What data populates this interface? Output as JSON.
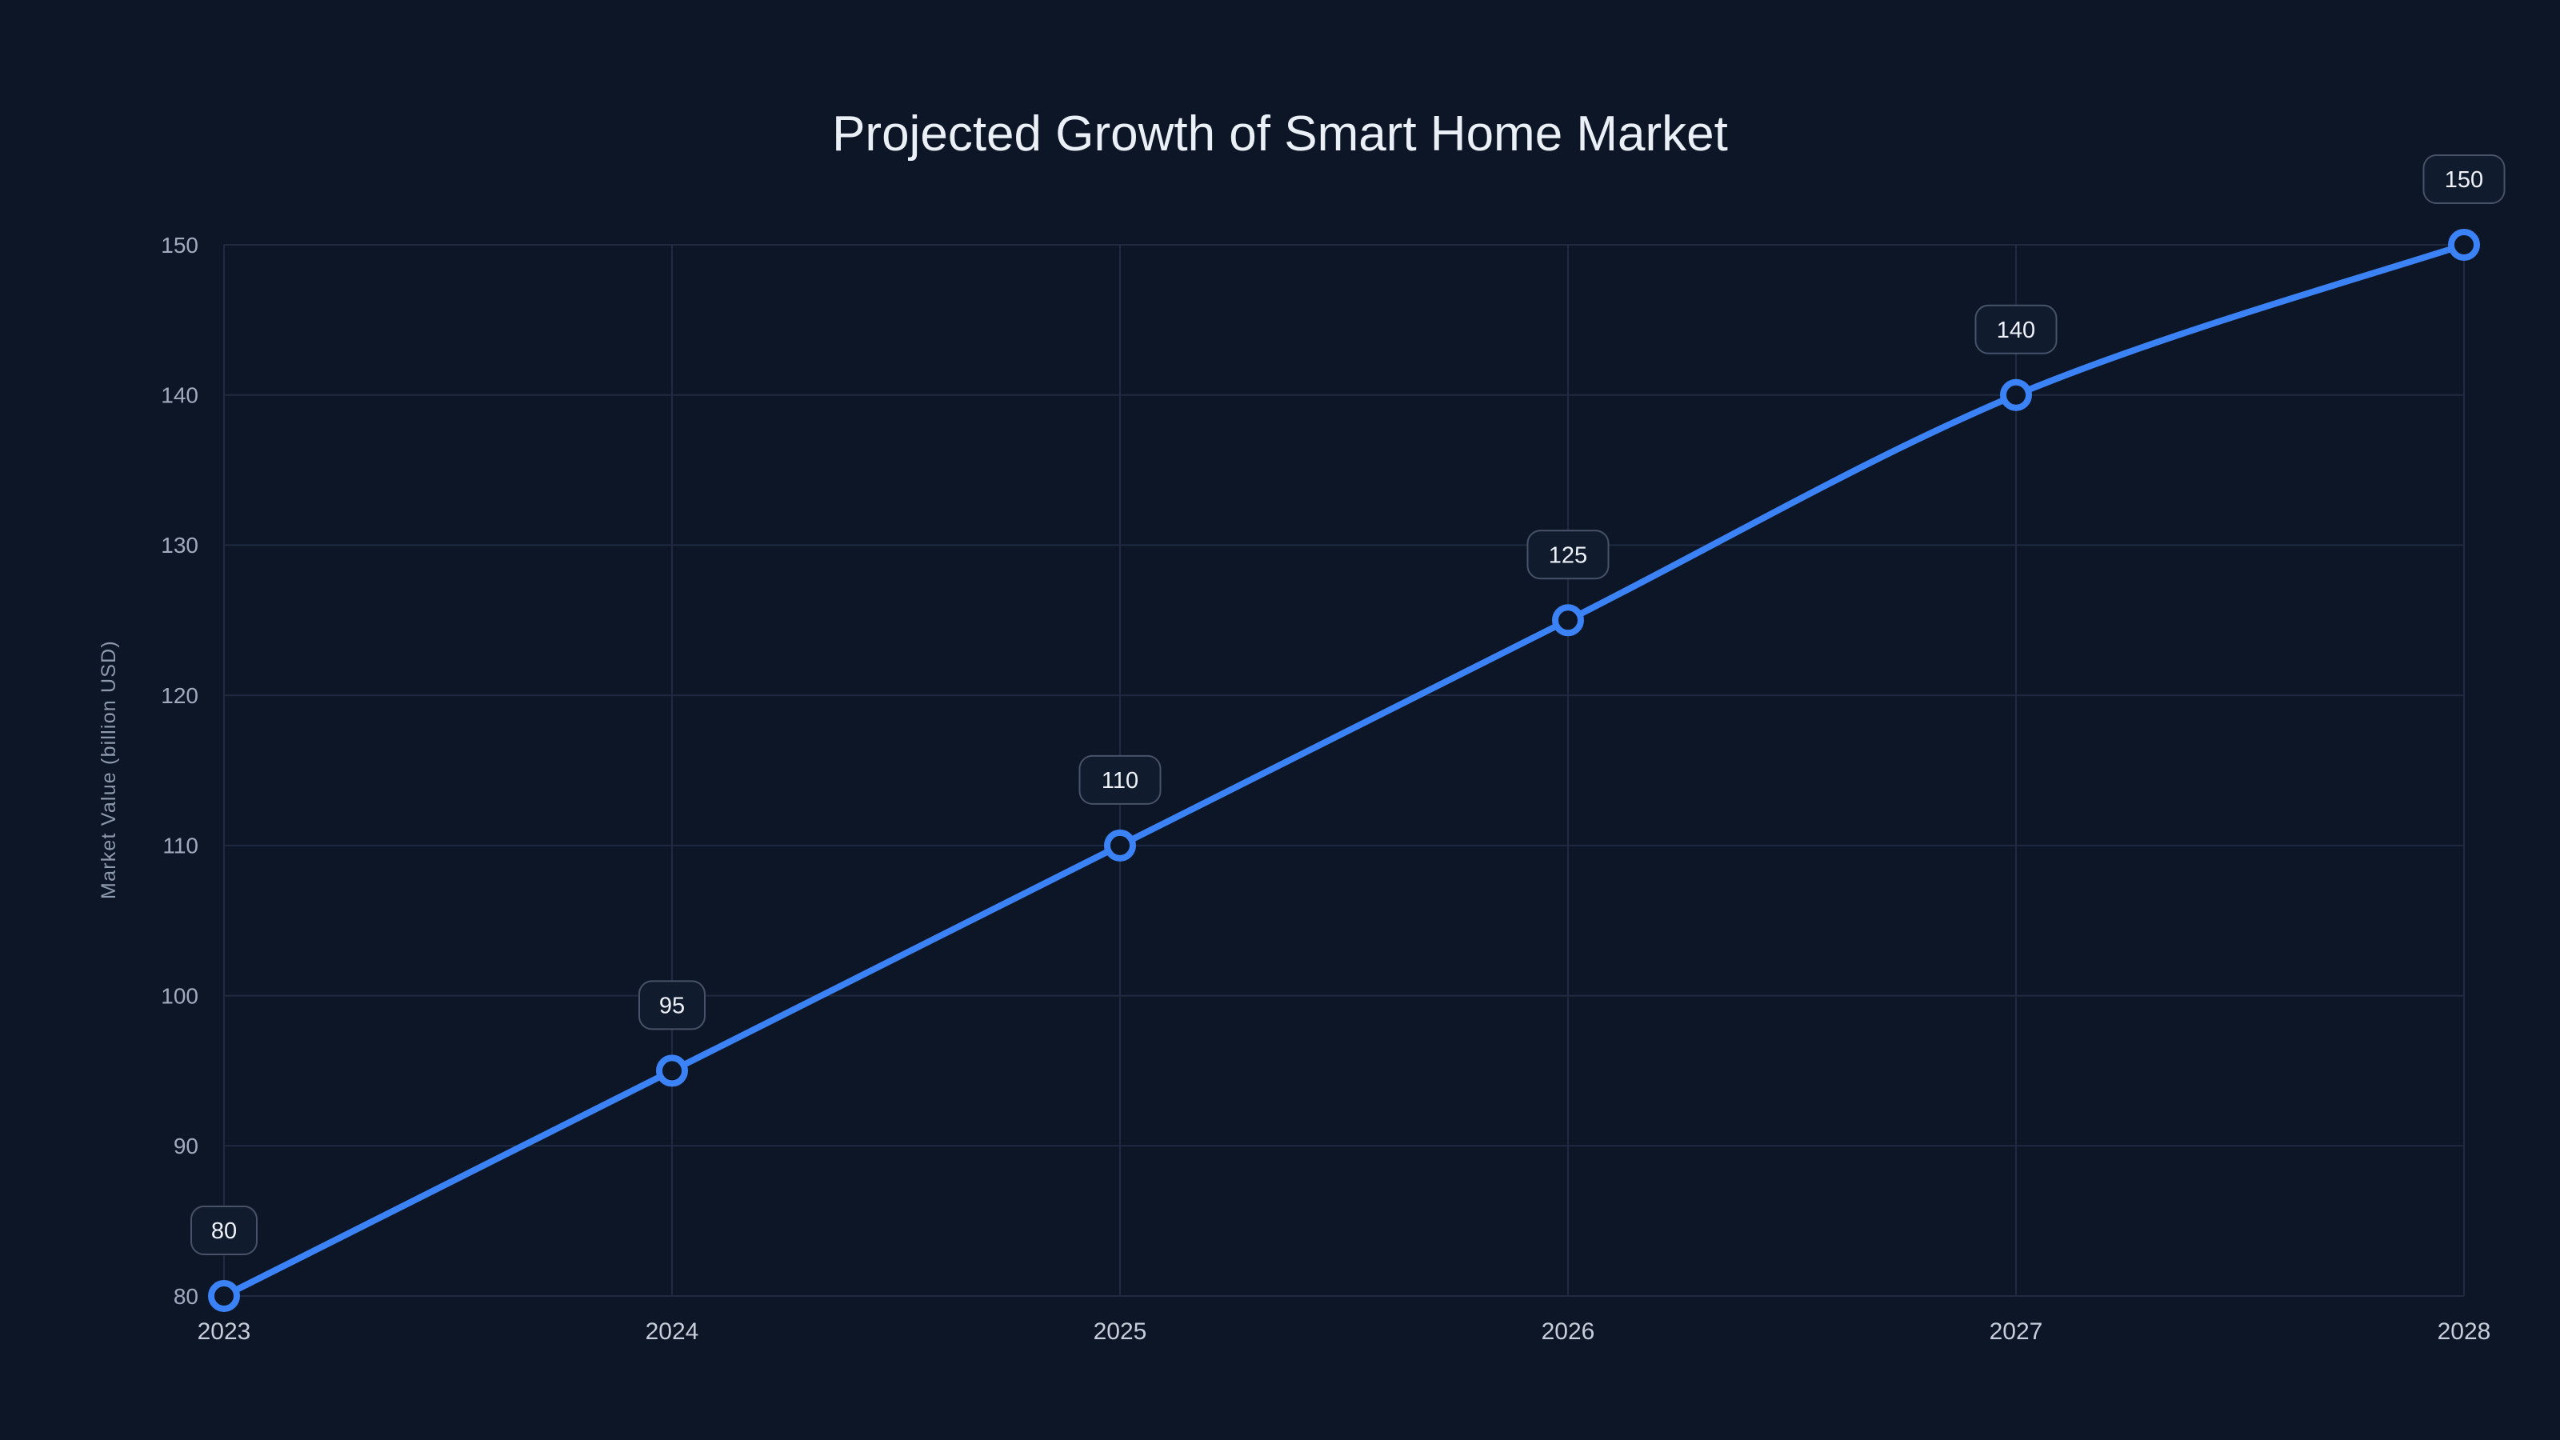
{
  "chart_data": {
    "type": "line",
    "title": "Projected Growth of Smart Home Market",
    "xlabel": "",
    "ylabel": "Market Value (billion USD)",
    "categories": [
      "2023",
      "2024",
      "2025",
      "2026",
      "2027",
      "2028"
    ],
    "values": [
      80,
      95,
      110,
      125,
      140,
      150
    ],
    "point_labels": [
      "80",
      "95",
      "110",
      "125",
      "140",
      "150"
    ],
    "ylim": [
      80,
      150
    ],
    "yticks": [
      80,
      90,
      100,
      110,
      120,
      130,
      140,
      150
    ],
    "grid": true,
    "legend_position": "none",
    "colors": {
      "background": "#0d1626",
      "line": "#3b82f6",
      "grid": "#1f2940",
      "x_tick_text": "#c5cdd9",
      "y_tick_text": "#9fabbd",
      "axis_label_text": "#8d99ad",
      "title_text": "#ebf0f7",
      "badge_fill": "#101b2e",
      "badge_border": "#475269",
      "badge_text": "#eef2f8",
      "marker_fill": "#0d1626"
    }
  }
}
